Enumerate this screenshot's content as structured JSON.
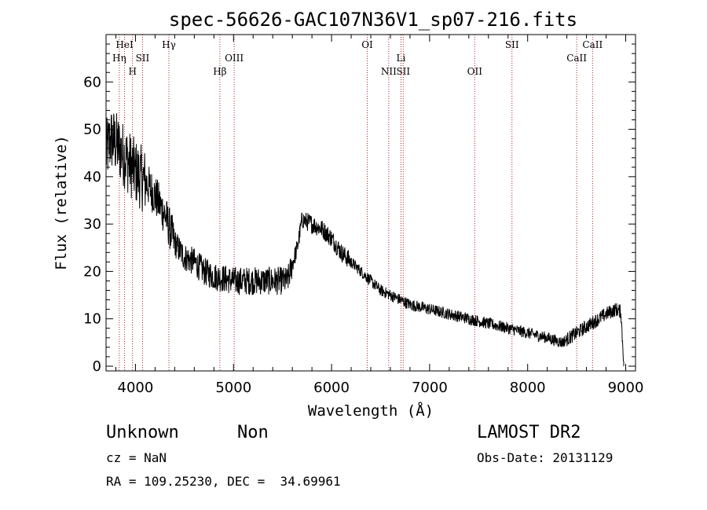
{
  "chart_data": {
    "type": "line",
    "title": "spec-56626-GAC107N36V1_sp07-216.fits",
    "xlabel": "Wavelength (Å)",
    "ylabel": "Flux (relative)",
    "xlim": [
      3700,
      9100
    ],
    "ylim": [
      -1,
      70
    ],
    "x_ticks": [
      4000,
      5000,
      6000,
      7000,
      8000,
      9000
    ],
    "y_ticks": [
      0,
      10,
      20,
      30,
      40,
      50,
      60
    ],
    "line_color": "#000000",
    "marker_color": "#b22222",
    "spectrum_anchors": [
      {
        "x": 3700,
        "y": 45
      },
      {
        "x": 3750,
        "y": 48
      },
      {
        "x": 3800,
        "y": 47
      },
      {
        "x": 3900,
        "y": 44
      },
      {
        "x": 4000,
        "y": 41
      },
      {
        "x": 4100,
        "y": 39
      },
      {
        "x": 4200,
        "y": 36
      },
      {
        "x": 4300,
        "y": 32
      },
      {
        "x": 4400,
        "y": 26
      },
      {
        "x": 4500,
        "y": 23
      },
      {
        "x": 4600,
        "y": 22
      },
      {
        "x": 4700,
        "y": 20
      },
      {
        "x": 4800,
        "y": 19
      },
      {
        "x": 5000,
        "y": 18
      },
      {
        "x": 5200,
        "y": 18
      },
      {
        "x": 5400,
        "y": 18
      },
      {
        "x": 5550,
        "y": 18
      },
      {
        "x": 5650,
        "y": 25
      },
      {
        "x": 5700,
        "y": 31
      },
      {
        "x": 5800,
        "y": 30
      },
      {
        "x": 5900,
        "y": 29
      },
      {
        "x": 6000,
        "y": 27
      },
      {
        "x": 6100,
        "y": 24
      },
      {
        "x": 6200,
        "y": 22
      },
      {
        "x": 6300,
        "y": 20
      },
      {
        "x": 6400,
        "y": 18
      },
      {
        "x": 6500,
        "y": 16
      },
      {
        "x": 6600,
        "y": 15
      },
      {
        "x": 6700,
        "y": 14
      },
      {
        "x": 6800,
        "y": 13
      },
      {
        "x": 7000,
        "y": 12
      },
      {
        "x": 7200,
        "y": 11
      },
      {
        "x": 7400,
        "y": 10
      },
      {
        "x": 7600,
        "y": 9
      },
      {
        "x": 7800,
        "y": 8
      },
      {
        "x": 8000,
        "y": 7
      },
      {
        "x": 8200,
        "y": 6
      },
      {
        "x": 8350,
        "y": 5
      },
      {
        "x": 8500,
        "y": 7
      },
      {
        "x": 8650,
        "y": 9
      },
      {
        "x": 8800,
        "y": 11
      },
      {
        "x": 8900,
        "y": 12
      },
      {
        "x": 8950,
        "y": 11.5
      },
      {
        "x": 8980,
        "y": 1
      }
    ],
    "spectral_lines": [
      {
        "label": "Hη",
        "x": 3835,
        "row": 2
      },
      {
        "label": "HeI",
        "x": 3889,
        "row": 1
      },
      {
        "label": "H",
        "x": 3970,
        "row": 3
      },
      {
        "label": "SII",
        "x": 4072,
        "row": 2
      },
      {
        "label": "Hγ",
        "x": 4341,
        "row": 1
      },
      {
        "label": "Hβ",
        "x": 4861,
        "row": 3
      },
      {
        "label": "OIII",
        "x": 5007,
        "row": 2
      },
      {
        "label": "OI",
        "x": 6364,
        "row": 1
      },
      {
        "label": "NII",
        "x": 6583,
        "row": 3
      },
      {
        "label": "Li",
        "x": 6708,
        "row": 2
      },
      {
        "label": "SII",
        "x": 6731,
        "row": 3
      },
      {
        "label": "OII",
        "x": 7460,
        "row": 3
      },
      {
        "label": "SII",
        "x": 7840,
        "row": 1
      },
      {
        "label": "CaII",
        "x": 8500,
        "row": 2
      },
      {
        "label": "CaII",
        "x": 8662,
        "row": 1
      }
    ]
  },
  "info": {
    "class": "Unknown",
    "subclass": "Non",
    "survey": "LAMOST DR2",
    "cz": "cz = NaN",
    "obs_date": "Obs-Date: 20131129",
    "coords": "RA = 109.25230, DEC =  34.69961"
  }
}
